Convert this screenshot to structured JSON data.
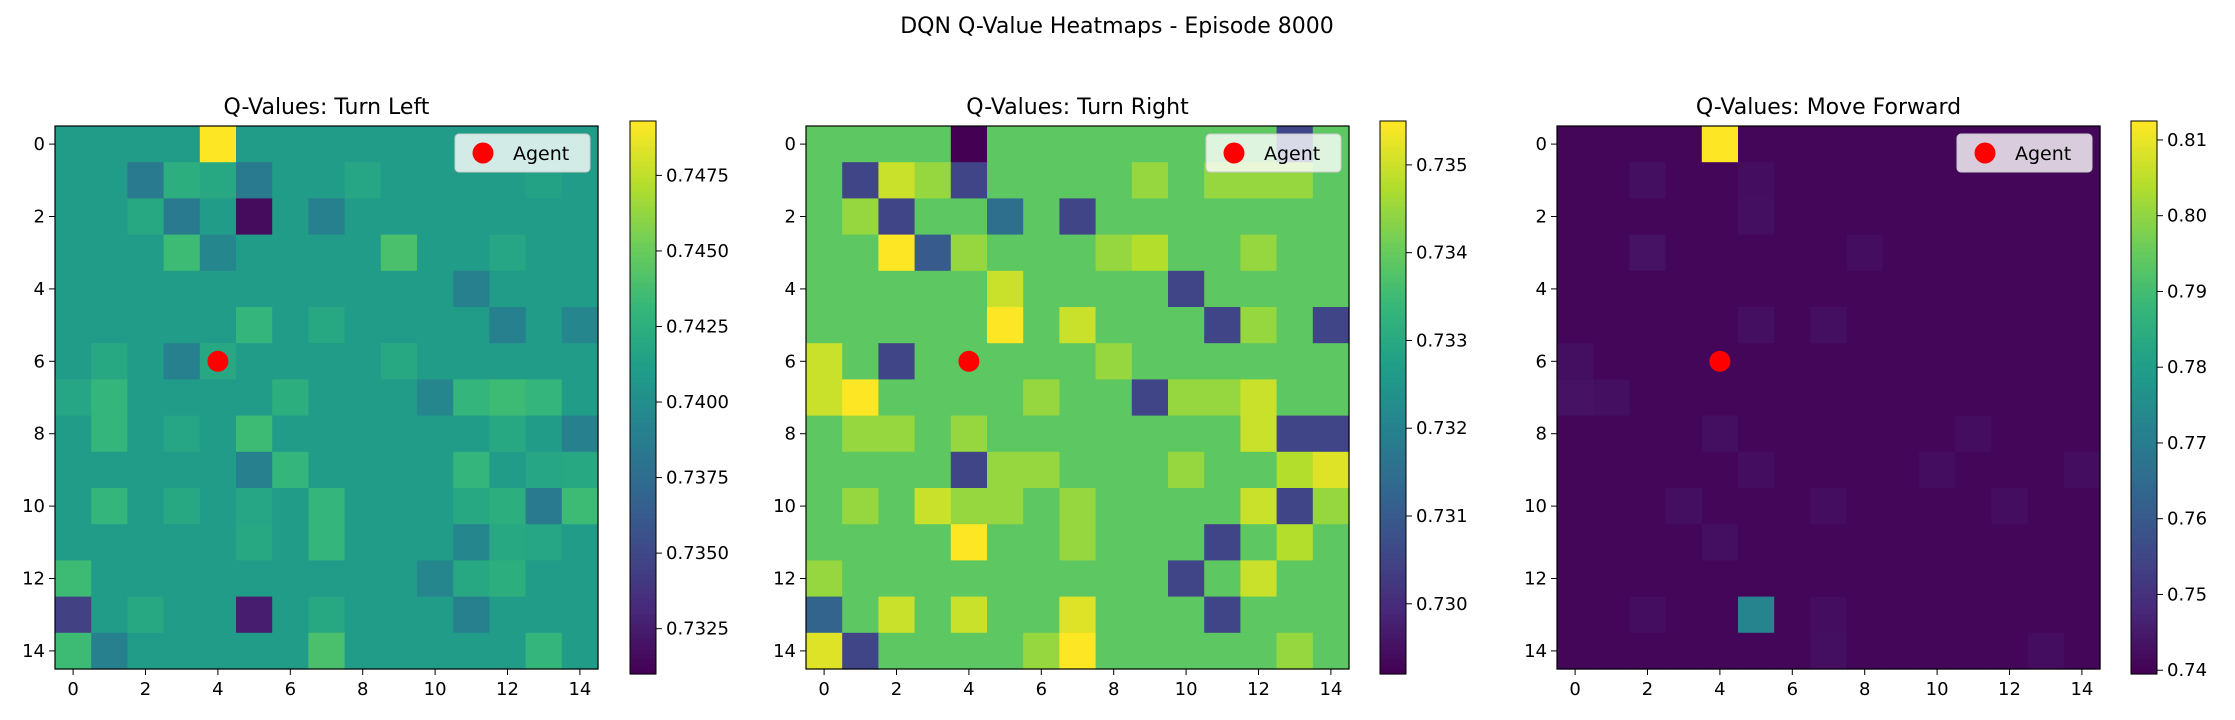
{
  "suptitle": "DQN Q-Value Heatmaps - Episode 8000",
  "legend_label": "Agent",
  "colors": {
    "agent": "#ff0000",
    "frame": "#000000"
  },
  "chart_data": [
    {
      "type": "heatmap",
      "title": "Q-Values: Turn Left",
      "grid_size": 15,
      "xticks": [
        "0",
        "2",
        "4",
        "6",
        "8",
        "10",
        "12",
        "14"
      ],
      "yticks": [
        "0",
        "2",
        "4",
        "6",
        "8",
        "10",
        "12",
        "14"
      ],
      "vmin": 0.731,
      "vmax": 0.7493,
      "colorbar_ticks": [
        {
          "v": 0.7325,
          "label": "0.7325"
        },
        {
          "v": 0.735,
          "label": "0.7350"
        },
        {
          "v": 0.7375,
          "label": "0.7375"
        },
        {
          "v": 0.74,
          "label": "0.7400"
        },
        {
          "v": 0.7425,
          "label": "0.7425"
        },
        {
          "v": 0.745,
          "label": "0.7450"
        },
        {
          "v": 0.7475,
          "label": "0.7475"
        }
      ],
      "agent": {
        "x": 4,
        "y": 6
      },
      "base": 0.741,
      "overrides": [
        [
          0,
          4,
          0.7493
        ],
        [
          1,
          2,
          0.7385
        ],
        [
          1,
          3,
          0.7425
        ],
        [
          1,
          4,
          0.742
        ],
        [
          1,
          5,
          0.7385
        ],
        [
          1,
          8,
          0.7418
        ],
        [
          1,
          13,
          0.7415
        ],
        [
          2,
          2,
          0.742
        ],
        [
          2,
          3,
          0.7385
        ],
        [
          2,
          5,
          0.7315
        ],
        [
          2,
          7,
          0.739
        ],
        [
          3,
          3,
          0.7435
        ],
        [
          3,
          4,
          0.7395
        ],
        [
          3,
          9,
          0.744
        ],
        [
          3,
          12,
          0.7418
        ],
        [
          4,
          11,
          0.739
        ],
        [
          5,
          5,
          0.743
        ],
        [
          5,
          7,
          0.742
        ],
        [
          5,
          12,
          0.739
        ],
        [
          5,
          14,
          0.7395
        ],
        [
          6,
          1,
          0.742
        ],
        [
          6,
          3,
          0.739
        ],
        [
          6,
          4,
          0.742
        ],
        [
          6,
          9,
          0.742
        ],
        [
          7,
          0,
          0.7418
        ],
        [
          7,
          1,
          0.743
        ],
        [
          7,
          6,
          0.7425
        ],
        [
          7,
          10,
          0.7395
        ],
        [
          7,
          11,
          0.743
        ],
        [
          7,
          12,
          0.7435
        ],
        [
          7,
          13,
          0.743
        ],
        [
          8,
          1,
          0.743
        ],
        [
          8,
          3,
          0.7418
        ],
        [
          8,
          5,
          0.7435
        ],
        [
          8,
          12,
          0.742
        ],
        [
          8,
          14,
          0.739
        ],
        [
          9,
          5,
          0.739
        ],
        [
          9,
          6,
          0.743
        ],
        [
          9,
          11,
          0.743
        ],
        [
          9,
          13,
          0.7418
        ],
        [
          9,
          14,
          0.742
        ],
        [
          10,
          1,
          0.743
        ],
        [
          10,
          3,
          0.742
        ],
        [
          10,
          5,
          0.7418
        ],
        [
          10,
          7,
          0.743
        ],
        [
          10,
          11,
          0.742
        ],
        [
          10,
          12,
          0.7425
        ],
        [
          10,
          13,
          0.7385
        ],
        [
          10,
          14,
          0.7435
        ],
        [
          11,
          5,
          0.742
        ],
        [
          11,
          7,
          0.743
        ],
        [
          11,
          11,
          0.7395
        ],
        [
          11,
          12,
          0.742
        ],
        [
          11,
          13,
          0.7418
        ],
        [
          12,
          0,
          0.7435
        ],
        [
          12,
          10,
          0.7395
        ],
        [
          12,
          11,
          0.742
        ],
        [
          12,
          12,
          0.7425
        ],
        [
          13,
          0,
          0.7345
        ],
        [
          13,
          2,
          0.742
        ],
        [
          13,
          5,
          0.7325
        ],
        [
          13,
          7,
          0.742
        ],
        [
          13,
          11,
          0.739
        ],
        [
          14,
          0,
          0.7435
        ],
        [
          14,
          1,
          0.739
        ],
        [
          14,
          7,
          0.744
        ],
        [
          14,
          13,
          0.743
        ]
      ]
    },
    {
      "type": "heatmap",
      "title": "Q-Values: Turn Right",
      "grid_size": 15,
      "xticks": [
        "0",
        "2",
        "4",
        "6",
        "8",
        "10",
        "12",
        "14"
      ],
      "yticks": [
        "0",
        "2",
        "4",
        "6",
        "8",
        "10",
        "12",
        "14"
      ],
      "vmin": 0.7292,
      "vmax": 0.7355,
      "colorbar_ticks": [
        {
          "v": 0.73,
          "label": "0.730"
        },
        {
          "v": 0.731,
          "label": "0.731"
        },
        {
          "v": 0.732,
          "label": "0.732"
        },
        {
          "v": 0.733,
          "label": "0.733"
        },
        {
          "v": 0.734,
          "label": "0.734"
        },
        {
          "v": 0.735,
          "label": "0.735"
        }
      ],
      "agent": {
        "x": 4,
        "y": 6
      },
      "base": 0.7339,
      "overrides": [
        [
          0,
          4,
          0.7292
        ],
        [
          0,
          13,
          0.7305
        ],
        [
          1,
          1,
          0.7305
        ],
        [
          1,
          2,
          0.735
        ],
        [
          1,
          3,
          0.7345
        ],
        [
          1,
          4,
          0.7305
        ],
        [
          1,
          9,
          0.7345
        ],
        [
          1,
          11,
          0.7345
        ],
        [
          1,
          12,
          0.7345
        ],
        [
          1,
          13,
          0.7345
        ],
        [
          2,
          1,
          0.7345
        ],
        [
          2,
          2,
          0.7305
        ],
        [
          2,
          5,
          0.7315
        ],
        [
          2,
          7,
          0.7305
        ],
        [
          3,
          2,
          0.7355
        ],
        [
          3,
          3,
          0.731
        ],
        [
          3,
          4,
          0.7345
        ],
        [
          3,
          8,
          0.7345
        ],
        [
          3,
          9,
          0.7348
        ],
        [
          3,
          12,
          0.7345
        ],
        [
          4,
          5,
          0.735
        ],
        [
          4,
          10,
          0.7305
        ],
        [
          5,
          5,
          0.7355
        ],
        [
          5,
          7,
          0.735
        ],
        [
          5,
          11,
          0.7305
        ],
        [
          5,
          12,
          0.7345
        ],
        [
          5,
          14,
          0.7305
        ],
        [
          6,
          0,
          0.735
        ],
        [
          6,
          2,
          0.7305
        ],
        [
          6,
          8,
          0.7345
        ],
        [
          7,
          0,
          0.735
        ],
        [
          7,
          1,
          0.7355
        ],
        [
          7,
          6,
          0.7345
        ],
        [
          7,
          9,
          0.7305
        ],
        [
          7,
          10,
          0.7345
        ],
        [
          7,
          11,
          0.7345
        ],
        [
          7,
          12,
          0.735
        ],
        [
          8,
          1,
          0.7345
        ],
        [
          8,
          2,
          0.7345
        ],
        [
          8,
          4,
          0.7345
        ],
        [
          8,
          12,
          0.735
        ],
        [
          8,
          13,
          0.7305
        ],
        [
          8,
          14,
          0.7305
        ],
        [
          9,
          4,
          0.7305
        ],
        [
          9,
          5,
          0.7345
        ],
        [
          9,
          6,
          0.7345
        ],
        [
          9,
          10,
          0.7345
        ],
        [
          9,
          13,
          0.7348
        ],
        [
          9,
          14,
          0.7352
        ],
        [
          10,
          1,
          0.7345
        ],
        [
          10,
          3,
          0.735
        ],
        [
          10,
          4,
          0.7345
        ],
        [
          10,
          5,
          0.7345
        ],
        [
          10,
          7,
          0.7345
        ],
        [
          10,
          12,
          0.735
        ],
        [
          10,
          13,
          0.7305
        ],
        [
          10,
          14,
          0.7345
        ],
        [
          11,
          4,
          0.7355
        ],
        [
          11,
          7,
          0.7345
        ],
        [
          11,
          11,
          0.7305
        ],
        [
          11,
          13,
          0.7348
        ],
        [
          12,
          0,
          0.7345
        ],
        [
          12,
          10,
          0.7305
        ],
        [
          12,
          12,
          0.735
        ],
        [
          13,
          0,
          0.7312
        ],
        [
          13,
          2,
          0.735
        ],
        [
          13,
          4,
          0.735
        ],
        [
          13,
          7,
          0.7352
        ],
        [
          13,
          11,
          0.7305
        ],
        [
          14,
          0,
          0.7352
        ],
        [
          14,
          1,
          0.7305
        ],
        [
          14,
          6,
          0.7345
        ],
        [
          14,
          7,
          0.7355
        ],
        [
          14,
          13,
          0.7345
        ]
      ]
    },
    {
      "type": "heatmap",
      "title": "Q-Values: Move Forward",
      "grid_size": 15,
      "xticks": [
        "0",
        "2",
        "4",
        "6",
        "8",
        "10",
        "12",
        "14"
      ],
      "yticks": [
        "0",
        "2",
        "4",
        "6",
        "8",
        "10",
        "12",
        "14"
      ],
      "vmin": 0.7395,
      "vmax": 0.8125,
      "colorbar_ticks": [
        {
          "v": 0.74,
          "label": "0.74"
        },
        {
          "v": 0.75,
          "label": "0.75"
        },
        {
          "v": 0.76,
          "label": "0.76"
        },
        {
          "v": 0.77,
          "label": "0.77"
        },
        {
          "v": 0.78,
          "label": "0.78"
        },
        {
          "v": 0.79,
          "label": "0.79"
        },
        {
          "v": 0.8,
          "label": "0.80"
        },
        {
          "v": 0.81,
          "label": "0.81"
        }
      ],
      "agent": {
        "x": 4,
        "y": 6
      },
      "base": 0.7405,
      "overrides": [
        [
          0,
          4,
          0.8125
        ],
        [
          1,
          2,
          0.7425
        ],
        [
          1,
          5,
          0.742
        ],
        [
          2,
          5,
          0.7425
        ],
        [
          3,
          2,
          0.743
        ],
        [
          3,
          8,
          0.742
        ],
        [
          5,
          5,
          0.7425
        ],
        [
          5,
          7,
          0.7425
        ],
        [
          6,
          0,
          0.7425
        ],
        [
          7,
          0,
          0.743
        ],
        [
          7,
          1,
          0.7425
        ],
        [
          8,
          4,
          0.7425
        ],
        [
          8,
          11,
          0.742
        ],
        [
          9,
          5,
          0.742
        ],
        [
          9,
          10,
          0.742
        ],
        [
          9,
          14,
          0.742
        ],
        [
          10,
          3,
          0.7425
        ],
        [
          10,
          7,
          0.742
        ],
        [
          10,
          12,
          0.742
        ],
        [
          11,
          4,
          0.7425
        ],
        [
          13,
          5,
          0.7725
        ],
        [
          13,
          7,
          0.742
        ],
        [
          13,
          2,
          0.742
        ],
        [
          14,
          7,
          0.7425
        ],
        [
          14,
          13,
          0.742
        ]
      ]
    }
  ]
}
